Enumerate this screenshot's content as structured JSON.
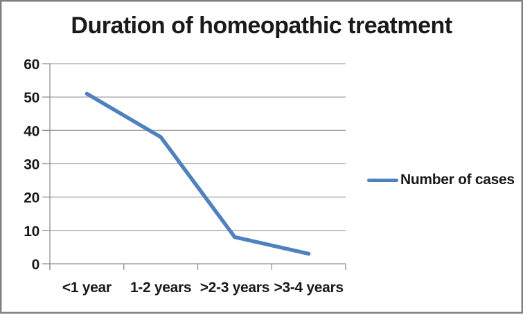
{
  "frame": {
    "background": "#ffffff",
    "border_color": "#7f7f7f"
  },
  "chart_data": {
    "type": "line",
    "title": "Duration of homeopathic treatment",
    "categories": [
      "<1 year",
      "1-2 years",
      ">2-3 years",
      ">3-4 years"
    ],
    "series": [
      {
        "name": "Number of cases",
        "color": "#4f81bd",
        "values": [
          51,
          38,
          8,
          3
        ]
      }
    ],
    "xlabel": "",
    "ylabel": "",
    "ylim": [
      0,
      60
    ],
    "ytick_step": 10,
    "yticks": [
      0,
      10,
      20,
      30,
      40,
      50,
      60
    ],
    "grid": true,
    "legend_position": "right",
    "gridline_color": "#a6a6a6",
    "axis_color": "#8e8e8e",
    "text_color": "#1a1a1a",
    "line_width": 5.5
  },
  "legend": {
    "label": "Number of cases",
    "swatch_color": "#4f81bd"
  }
}
